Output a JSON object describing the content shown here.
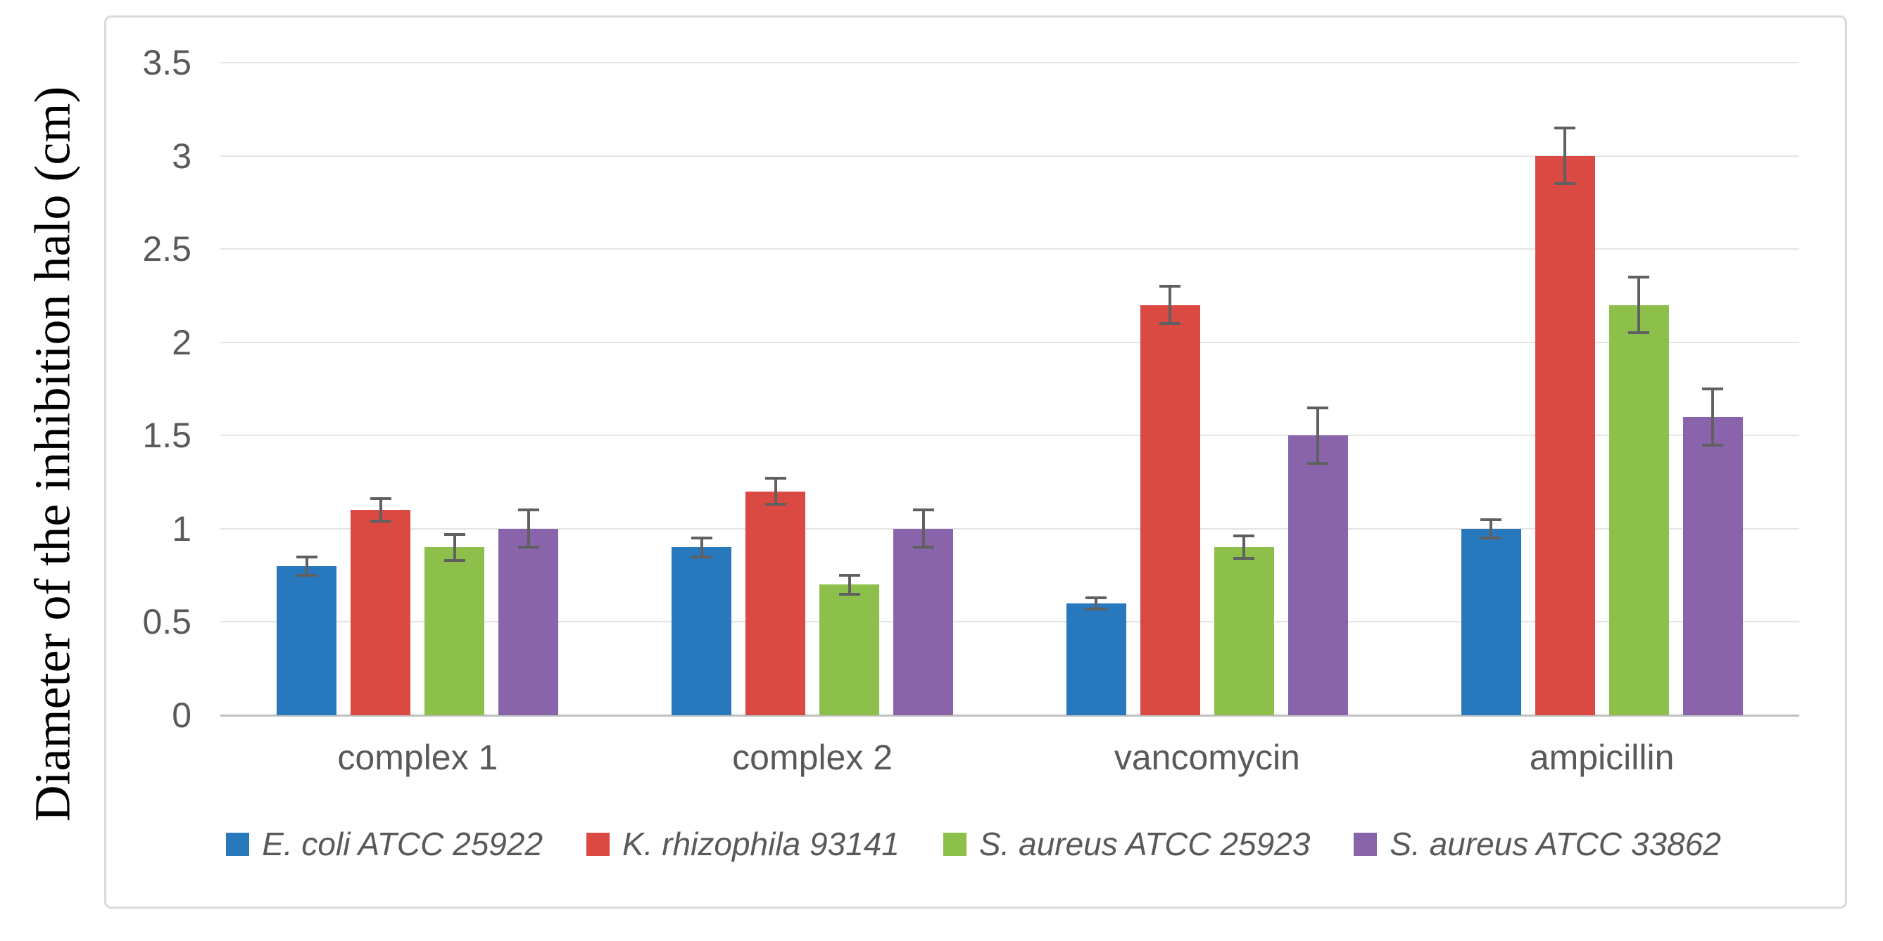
{
  "chart_data": {
    "type": "bar",
    "title": "",
    "xlabel": "",
    "ylabel": "Diameter of the inhibition halo (cm)",
    "ylim": [
      0,
      3.5
    ],
    "ytick_step": 0.5,
    "yticks": [
      3.5,
      3,
      2.5,
      2,
      1.5,
      1,
      0.5,
      0
    ],
    "grid": "horizontal-only",
    "legend_position": "bottom",
    "error_bars": true,
    "categories": [
      "complex 1",
      "complex 2",
      "vancomycin",
      "ampicillin"
    ],
    "series": [
      {
        "name": "E. coli ATCC 25922",
        "color": "#2878BE",
        "values": [
          0.8,
          0.9,
          0.6,
          1.0
        ],
        "errors": [
          0.05,
          0.05,
          0.03,
          0.05
        ]
      },
      {
        "name": "K. rhizophila 93141",
        "color": "#DB4A42",
        "values": [
          1.1,
          1.2,
          2.2,
          3.0
        ],
        "errors": [
          0.06,
          0.07,
          0.1,
          0.15
        ]
      },
      {
        "name": "S. aureus ATCC 25923",
        "color": "#8CC04B",
        "values": [
          0.9,
          0.7,
          0.9,
          2.2
        ],
        "errors": [
          0.07,
          0.05,
          0.06,
          0.15
        ]
      },
      {
        "name": "S. aureus ATCC 33862",
        "color": "#8A64AA",
        "values": [
          1.0,
          1.0,
          1.5,
          1.6
        ],
        "errors": [
          0.1,
          0.1,
          0.15,
          0.15
        ]
      }
    ],
    "colors": {
      "text": "#595959",
      "gridline": "#E4E4E4",
      "axis_line": "#BFBFBF",
      "chart_border": "#D9D9D9",
      "error_bar": "#606060",
      "background": "#FFFFFF"
    }
  }
}
